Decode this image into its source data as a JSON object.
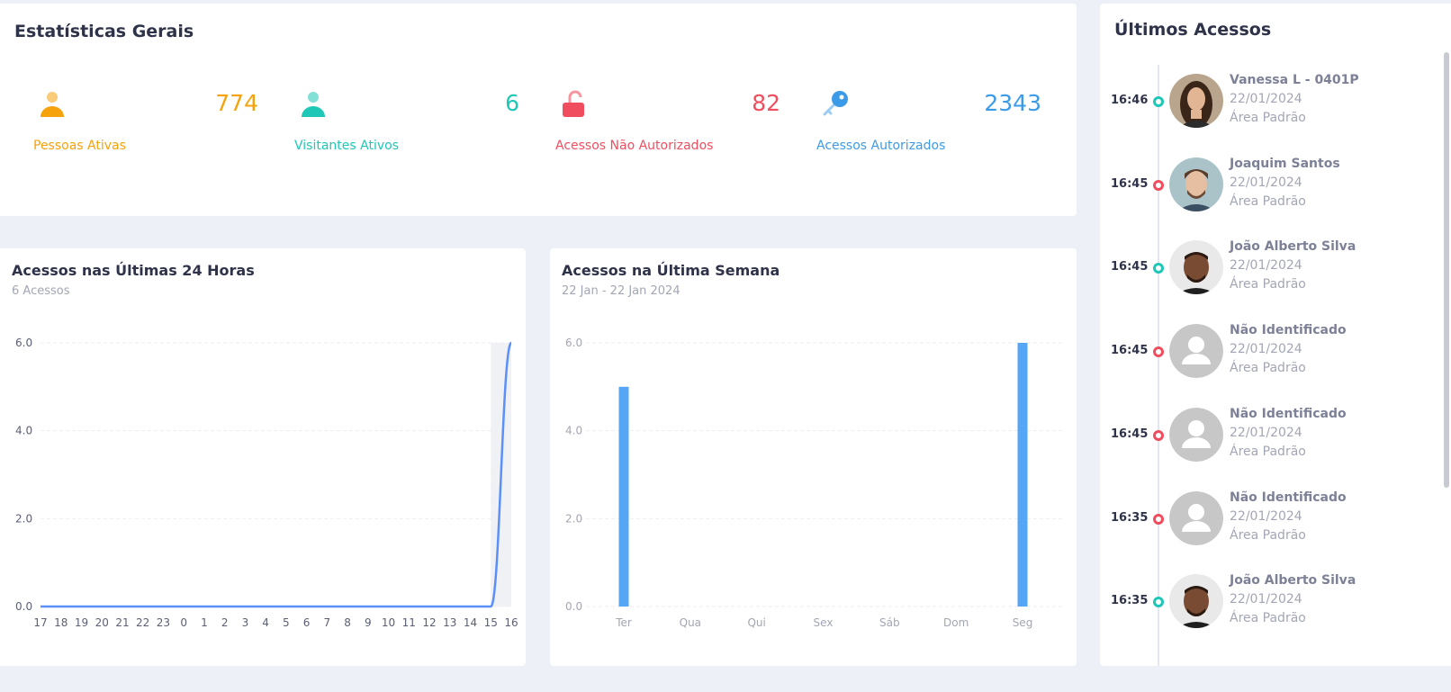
{
  "stats": {
    "title": "Estatísticas Gerais",
    "cards": [
      {
        "value": "774",
        "label": "Pessoas Ativas",
        "icon": "person-icon",
        "color": "#f5a20c",
        "bg": "#fff2dc"
      },
      {
        "value": "6",
        "label": "Visitantes Ativos",
        "icon": "person-icon",
        "color": "#1ec7b6",
        "bg": "#c9f4ef"
      },
      {
        "value": "82",
        "label": "Acessos Não Autorizados",
        "icon": "unlock-icon",
        "color": "#f04e5f",
        "bg": "#ffe1e3"
      },
      {
        "value": "2343",
        "label": "Acessos Autorizados",
        "icon": "key-icon",
        "color": "#3c9be8",
        "bg": "#dfeefe"
      }
    ]
  },
  "chart24": {
    "title": "Acessos nas Últimas 24 Horas",
    "subtitle": "6 Acessos"
  },
  "chartweek": {
    "title": "Acessos na Última Semana",
    "subtitle": "22 Jan - 22 Jan 2024"
  },
  "chart_data": [
    {
      "type": "area",
      "title": "Acessos nas Últimas 24 Horas",
      "categories": [
        "17",
        "18",
        "19",
        "20",
        "21",
        "22",
        "23",
        "0",
        "1",
        "2",
        "3",
        "4",
        "5",
        "6",
        "7",
        "8",
        "9",
        "10",
        "11",
        "12",
        "13",
        "14",
        "15",
        "16"
      ],
      "values": [
        0,
        0,
        0,
        0,
        0,
        0,
        0,
        0,
        0,
        0,
        0,
        0,
        0,
        0,
        0,
        0,
        0,
        0,
        0,
        0,
        0,
        0,
        0,
        6
      ],
      "yticks": [
        "0.0",
        "2.0",
        "4.0",
        "6.0"
      ],
      "ylim": [
        0,
        6
      ],
      "color": "#5b8ff9"
    },
    {
      "type": "bar",
      "title": "Acessos na Última Semana",
      "categories": [
        "Ter",
        "Qua",
        "Qui",
        "Sex",
        "Sáb",
        "Dom",
        "Seg"
      ],
      "values": [
        5,
        0,
        0,
        0,
        0,
        0,
        6
      ],
      "yticks": [
        "0.0",
        "2.0",
        "4.0",
        "6.0"
      ],
      "ylim": [
        0,
        6
      ],
      "color": "#55a6f5"
    }
  ],
  "accesses": {
    "title": "Últimos Acessos",
    "items": [
      {
        "time": "16:46",
        "name": "Vanessa L - 0401P",
        "date": "22/01/2024",
        "area": "Área Padrão",
        "status": "authorized",
        "avatar": "photo-woman"
      },
      {
        "time": "16:45",
        "name": "Joaquim Santos",
        "date": "22/01/2024",
        "area": "Área Padrão",
        "status": "denied",
        "avatar": "photo-man-light"
      },
      {
        "time": "16:45",
        "name": "João Alberto Silva",
        "date": "22/01/2024",
        "area": "Área Padrão",
        "status": "authorized",
        "avatar": "photo-man-dark"
      },
      {
        "time": "16:45",
        "name": "Não Identificado",
        "date": "22/01/2024",
        "area": "Área Padrão",
        "status": "denied",
        "avatar": "placeholder"
      },
      {
        "time": "16:45",
        "name": "Não Identificado",
        "date": "22/01/2024",
        "area": "Área Padrão",
        "status": "denied",
        "avatar": "placeholder"
      },
      {
        "time": "16:35",
        "name": "Não Identificado",
        "date": "22/01/2024",
        "area": "Área Padrão",
        "status": "denied",
        "avatar": "placeholder"
      },
      {
        "time": "16:35",
        "name": "João Alberto Silva",
        "date": "22/01/2024",
        "area": "Área Padrão",
        "status": "authorized",
        "avatar": "photo-man-dark"
      }
    ],
    "status_colors": {
      "authorized": "#1ec7b6",
      "denied": "#f04e5f"
    }
  }
}
